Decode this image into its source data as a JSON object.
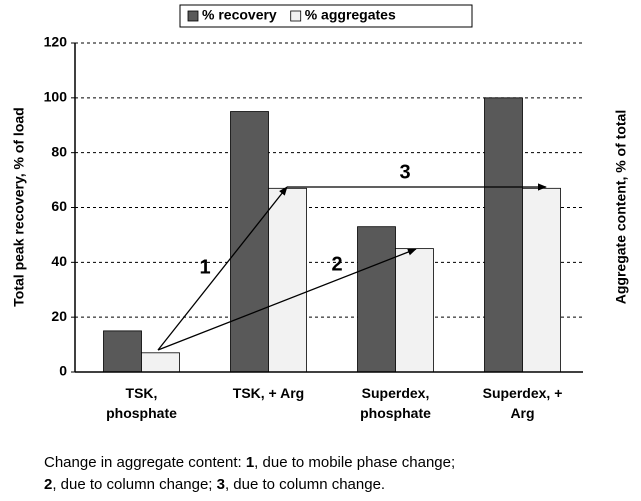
{
  "chart_data": {
    "type": "bar",
    "y_label": "Total peak recovery, % of  load",
    "y2_label": "Aggregate content, % of total",
    "categories": [
      "TSK, phosphate",
      "TSK, + Arg",
      "Superdex, phosphate",
      "Superdex, + Arg"
    ],
    "series": [
      {
        "name": "% recovery",
        "color": "#595959",
        "values": [
          15,
          95,
          53,
          100
        ]
      },
      {
        "name": "% aggregates",
        "color": "#f2f2f2",
        "values": [
          7,
          67,
          45,
          67
        ]
      }
    ],
    "ylim": [
      0,
      120
    ],
    "yticks": [
      0,
      20,
      40,
      60,
      80,
      100,
      120
    ],
    "grid": true,
    "annotations": [
      "1",
      "2",
      "3"
    ],
    "caption": [
      [
        "Change in aggregate content: ",
        "1",
        ", due to mobile phase change;"
      ],
      [
        "2",
        ", due to column change; ",
        "3",
        ", due to column change."
      ]
    ]
  }
}
